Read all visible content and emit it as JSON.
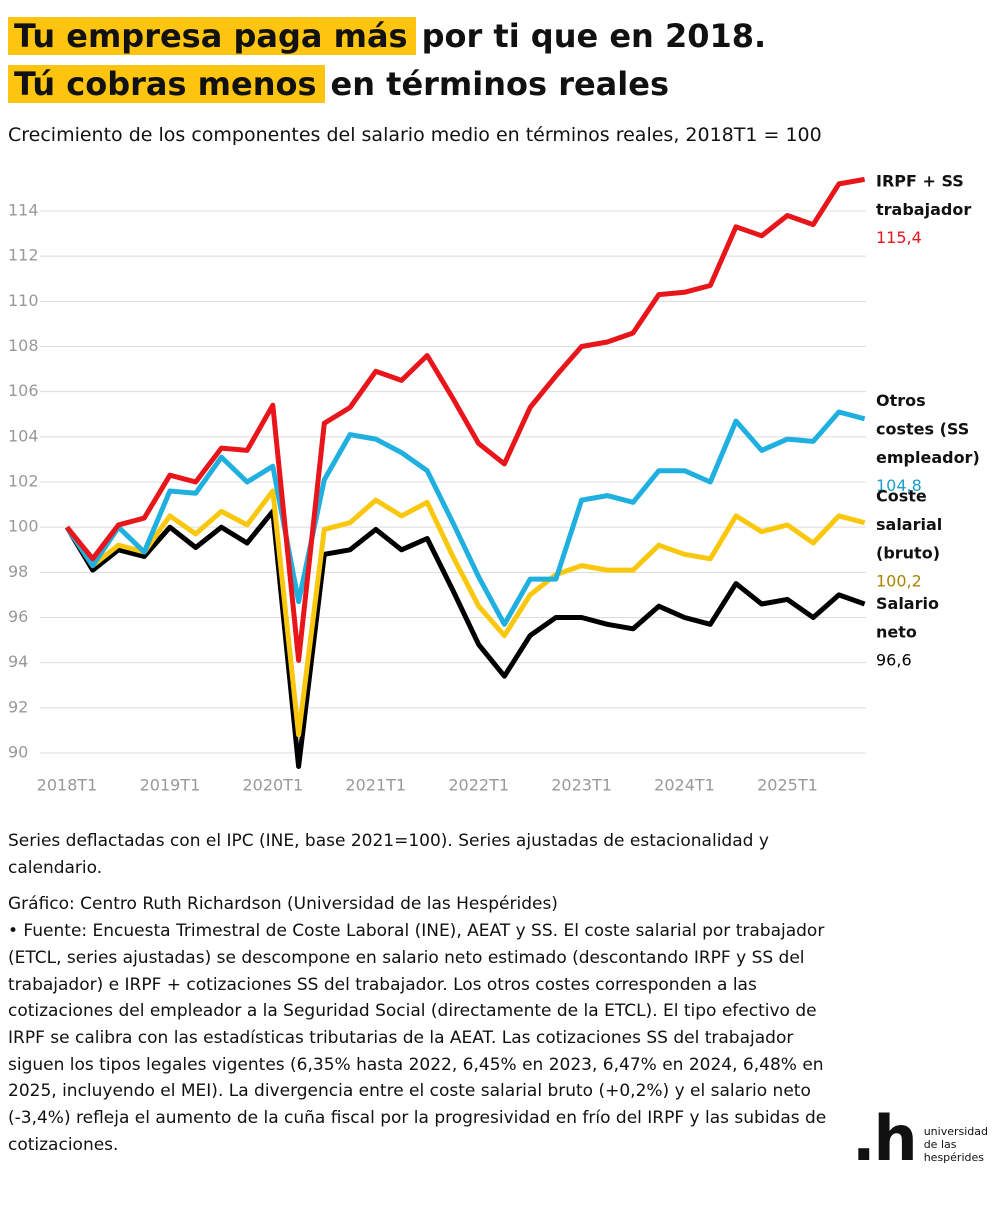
{
  "chart_data": {
    "type": "line",
    "title": [
      {
        "highlight": "Tu empresa paga más",
        "rest": "por ti que en 2018."
      },
      {
        "highlight": "Tú cobras menos",
        "rest": "en términos reales"
      }
    ],
    "subtitle": "Crecimiento de los componentes del salario medio en términos reales, 2018T1 = 100",
    "categories": [
      "2018T1",
      null,
      null,
      null,
      "2019T1",
      null,
      null,
      null,
      "2020T1",
      null,
      null,
      null,
      "2021T1",
      null,
      null,
      null,
      "2022T1",
      null,
      null,
      null,
      "2023T1",
      null,
      null,
      null,
      "2024T1",
      null,
      null,
      null,
      "2025T1",
      null,
      null,
      null
    ],
    "ylim": [
      89.3,
      116.2
    ],
    "yticks": [
      90,
      92,
      94,
      96,
      98,
      100,
      102,
      104,
      106,
      108,
      110,
      112,
      114
    ],
    "grid": true,
    "series": [
      {
        "name": "IRPF + SS trabajador",
        "color": "#e8161b",
        "end_label": "115,4",
        "end_label_color": "#e8161b",
        "values": [
          100,
          98.6,
          100.1,
          100.4,
          102.3,
          102.0,
          103.5,
          103.4,
          105.4,
          94.1,
          104.6,
          105.3,
          106.9,
          106.5,
          107.6,
          105.7,
          103.7,
          102.8,
          105.3,
          106.7,
          108.0,
          108.2,
          108.6,
          110.3,
          110.4,
          110.7,
          113.3,
          112.9,
          113.8,
          113.4,
          115.2,
          115.4
        ]
      },
      {
        "name": "Otros costes (SS empleador)",
        "color": "#1fb0e0",
        "end_label": "104,8",
        "end_label_color": "#1a9fcc",
        "values": [
          100,
          98.3,
          100.0,
          98.9,
          101.6,
          101.5,
          103.1,
          102.0,
          102.7,
          96.7,
          102.1,
          104.1,
          103.9,
          103.3,
          102.5,
          100.2,
          97.8,
          95.7,
          97.7,
          97.7,
          101.2,
          101.4,
          101.1,
          102.5,
          102.5,
          102.0,
          104.7,
          103.4,
          103.9,
          103.8,
          105.1,
          104.8
        ]
      },
      {
        "name": "Coste salarial (bruto)",
        "color": "#f9c80e",
        "end_label": "100,2",
        "end_label_color": "#a98500",
        "values": [
          100,
          98.3,
          99.2,
          98.9,
          100.5,
          99.7,
          100.7,
          100.1,
          101.6,
          90.8,
          99.9,
          100.2,
          101.2,
          100.5,
          101.1,
          98.7,
          96.5,
          95.2,
          97.0,
          97.9,
          98.3,
          98.1,
          98.1,
          99.2,
          98.8,
          98.6,
          100.5,
          99.8,
          100.1,
          99.3,
          100.5,
          100.2
        ]
      },
      {
        "name": "Salario neto",
        "color": "#000000",
        "end_label": "96,6",
        "end_label_color": "#000000",
        "values": [
          100,
          98.1,
          99.0,
          98.7,
          100.0,
          99.1,
          100.0,
          99.3,
          100.7,
          89.4,
          98.8,
          99.0,
          99.9,
          99.0,
          99.5,
          97.2,
          94.8,
          93.4,
          95.2,
          96.0,
          96.0,
          95.7,
          95.5,
          96.5,
          96.0,
          95.7,
          97.5,
          96.6,
          96.8,
          96.0,
          97.0,
          96.6
        ]
      }
    ],
    "notes": [
      "Series deflactadas con el IPC (INE, base 2021=100). Series ajustadas de estacionalidad y calendario.",
      "Gráfico: Centro Ruth Richardson (Universidad de las Hespérides)",
      " • Fuente: Encuesta Trimestral de Coste Laboral (INE), AEAT y SS. El coste salarial por trabajador (ETCL, series ajustadas) se descompone en salario neto estimado (descontando IRPF y SS del trabajador) e IRPF + cotizaciones SS del trabajador. Los otros costes corresponden a las cotizaciones del empleador a la Seguridad Social (directamente de la ETCL). El tipo efectivo de IRPF se calibra con las estadísticas tributarias de la AEAT. Las cotizaciones SS del trabajador siguen los tipos legales vigentes (6,35% hasta 2022, 6,45% en 2023, 6,47% en 2024, 6,48% en 2025, incluyendo el MEI). La divergencia entre el coste salarial bruto (+0,2%) y el salario neto (-3,4%) refleja el aumento de la cuña fiscal por la progresividad en frío del IRPF y las subidas de cotizaciones."
    ],
    "logo": {
      "mark": ".h",
      "text": [
        "universidad",
        "de las",
        "hespérides"
      ]
    }
  }
}
